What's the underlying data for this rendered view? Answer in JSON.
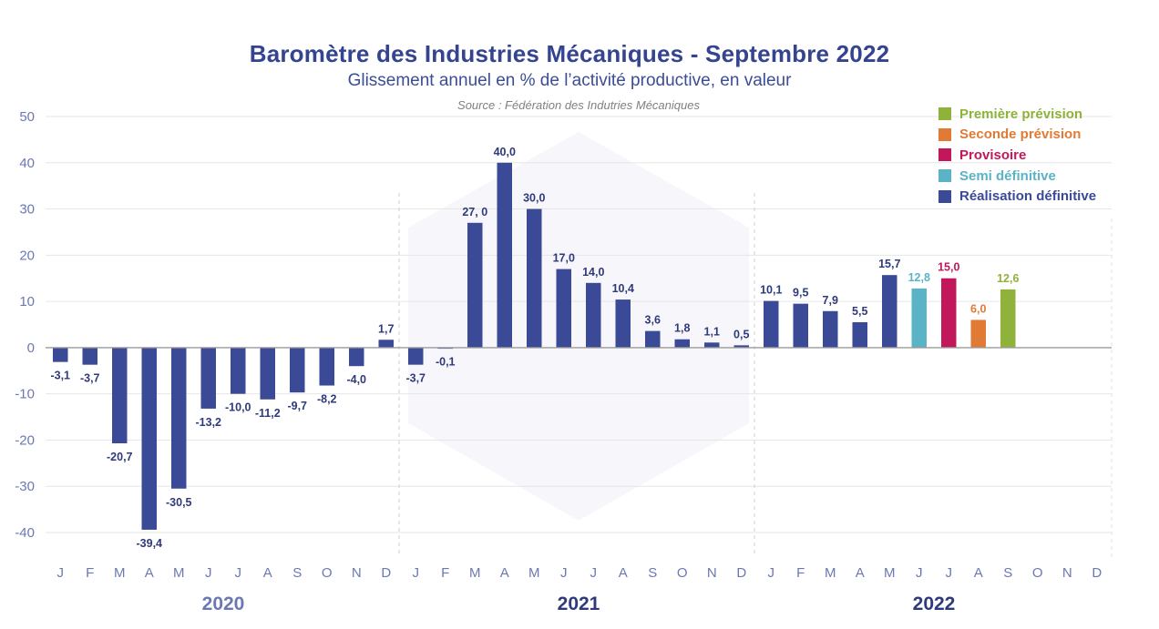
{
  "title": "Baromètre des Industries Mécaniques - Septembre 2022",
  "subtitle": "Glissement annuel en % de l’activité productive, en valeur",
  "source": "Source : Fédération des Indutries Mécaniques",
  "colors": {
    "definitive": "#3a4a97",
    "semi": "#5bb3c6",
    "provisoire": "#c2185b",
    "seconde": "#e07a35",
    "premiere": "#8fb23a",
    "axis_text": "#6b78b4",
    "grid": "#e6e6e6"
  },
  "legend": [
    {
      "label": "Première prévision",
      "status": "premiere"
    },
    {
      "label": "Seconde prévision",
      "status": "seconde"
    },
    {
      "label": "Provisoire",
      "status": "provisoire"
    },
    {
      "label": "Semi définitive",
      "status": "semi"
    },
    {
      "label": "Réalisation définitive",
      "status": "definitive"
    }
  ],
  "chart_data": {
    "type": "bar",
    "ylim": [
      -40,
      50
    ],
    "yticks": [
      -40,
      -30,
      -20,
      -10,
      0,
      10,
      20,
      30,
      40,
      50
    ],
    "grid": true,
    "legend_position": "top-right",
    "years": [
      "2020",
      "2021",
      "2022"
    ],
    "months": [
      "J",
      "F",
      "M",
      "A",
      "M",
      "J",
      "J",
      "A",
      "S",
      "O",
      "N",
      "D"
    ],
    "series": [
      {
        "year": "2020",
        "values": [
          -3.1,
          -3.7,
          -20.7,
          -39.4,
          -30.5,
          -13.2,
          -10.0,
          -11.2,
          -9.7,
          -8.2,
          -4.0,
          1.7
        ],
        "labels": [
          "-3,1",
          "-3,7",
          "-20,7",
          "-39,4",
          "-30,5",
          "-13,2",
          "-10,0",
          "-11,2",
          "-9,7",
          "-8,2",
          "-4,0",
          "1,7"
        ],
        "status": [
          "definitive",
          "definitive",
          "definitive",
          "definitive",
          "definitive",
          "definitive",
          "definitive",
          "definitive",
          "definitive",
          "definitive",
          "definitive",
          "definitive"
        ]
      },
      {
        "year": "2021",
        "values": [
          -3.7,
          -0.1,
          27.0,
          40.0,
          30.0,
          17.0,
          14.0,
          10.4,
          3.6,
          1.8,
          1.1,
          0.5
        ],
        "labels": [
          "-3,7",
          "-0,1",
          "27, 0",
          "40,0",
          "30,0",
          "17,0",
          "14,0",
          "10,4",
          "3,6",
          "1,8",
          "1,1",
          "0,5"
        ],
        "status": [
          "definitive",
          "definitive",
          "definitive",
          "definitive",
          "definitive",
          "definitive",
          "definitive",
          "definitive",
          "definitive",
          "definitive",
          "definitive",
          "definitive"
        ]
      },
      {
        "year": "2022",
        "values": [
          10.1,
          9.5,
          7.9,
          5.5,
          15.7,
          12.8,
          15.0,
          6.0,
          12.6,
          null,
          null,
          null
        ],
        "labels": [
          "10,1",
          "9,5",
          "7,9",
          "5,5",
          "15,7",
          "12,8",
          "15,0",
          "6,0",
          "12,6",
          "",
          "",
          ""
        ],
        "status": [
          "definitive",
          "definitive",
          "definitive",
          "definitive",
          "definitive",
          "semi",
          "provisoire",
          "seconde",
          "premiere",
          null,
          null,
          null
        ]
      }
    ]
  }
}
